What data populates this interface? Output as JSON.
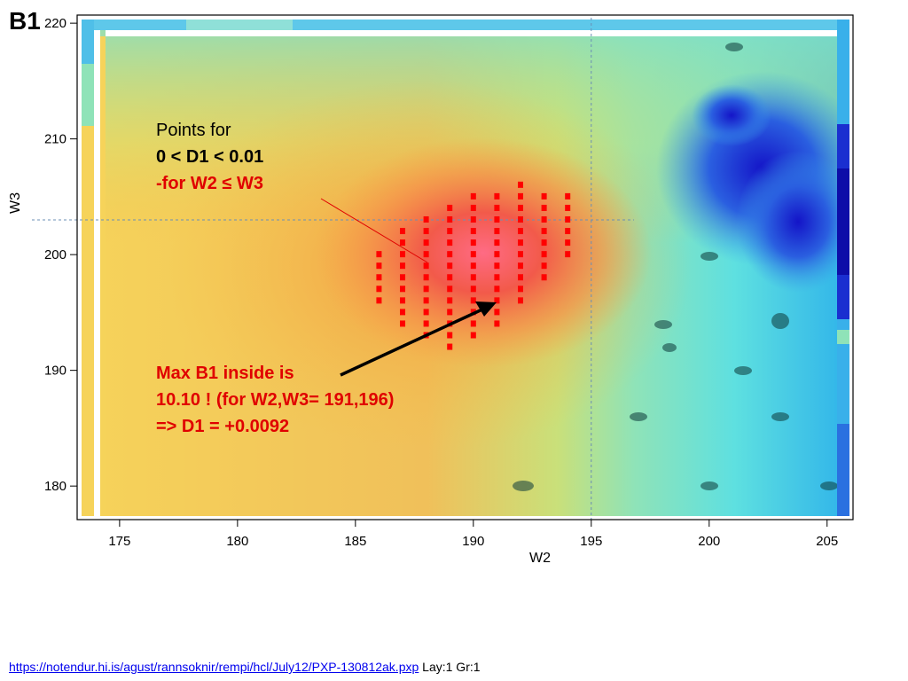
{
  "slide": {
    "title": "B1"
  },
  "annotations": {
    "points_line1": "Points for",
    "points_line2": "0 < D1 < 0.01",
    "points_line3": "-for W2 ≤ W3",
    "max_line1": "Max B1 inside is",
    "max_line2": "10.10 ! (for W2,W3= 191,196)",
    "max_line3": "=> D1 = +0.0092"
  },
  "footer": {
    "link_text": "https://notendur.hi.is/agust/rannsoknir/rempi/hcl/July12/PXP-130812ak.pxp",
    "suffix_text": "Lay:1 Gr:1"
  },
  "colors": {
    "points": "#ff0000",
    "annotation_red": "#e00000",
    "arrow": "#000000",
    "reference_lines": "#6b8fb5"
  },
  "chart_data": {
    "type": "heatmap",
    "xlabel": "W2",
    "ylabel": "W3",
    "xlim": [
      173.2,
      206.1
    ],
    "ylim": [
      177.1,
      220.7
    ],
    "x_ticks": [
      175,
      180,
      185,
      190,
      195,
      200,
      205
    ],
    "y_ticks": [
      180,
      190,
      200,
      210,
      220
    ],
    "reference_lines": {
      "vertical_x": 195,
      "horizontal_y": 203
    },
    "max_point": {
      "W2": 191,
      "W3": 196,
      "B1": 10.1,
      "D1": 0.0092
    },
    "highlight_points": [
      {
        "W2": 186,
        "W3_range": [
          196,
          200
        ]
      },
      {
        "W2": 187,
        "W3_range": [
          194,
          202
        ]
      },
      {
        "W2": 188,
        "W3_range": [
          193,
          203
        ]
      },
      {
        "W2": 189,
        "W3_range": [
          192,
          204
        ]
      },
      {
        "W2": 190,
        "W3_range": [
          193,
          205
        ]
      },
      {
        "W2": 191,
        "W3_range": [
          194,
          205
        ]
      },
      {
        "W2": 192,
        "W3_range": [
          196,
          206
        ]
      },
      {
        "W2": 193,
        "W3_range": [
          198,
          205
        ]
      },
      {
        "W2": 194,
        "W3_range": [
          200,
          205
        ]
      }
    ]
  }
}
